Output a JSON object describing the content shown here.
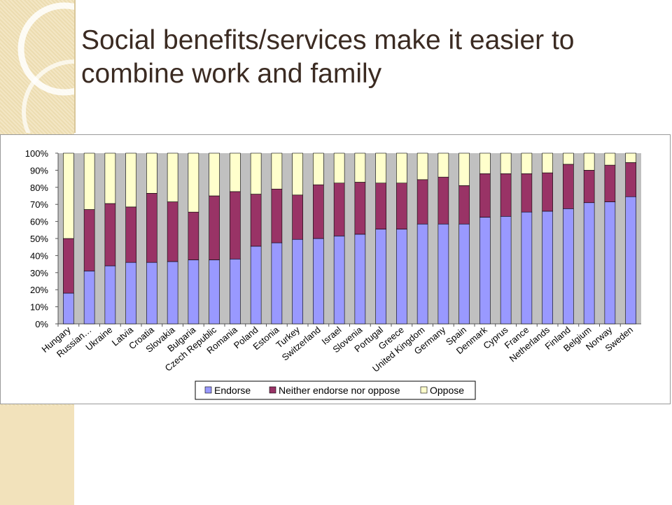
{
  "slide": {
    "title_line1": "Social benefits/services make it easier to",
    "title_line2": "combine work and family"
  },
  "colors": {
    "endorse": "#9999ff",
    "neither": "#993366",
    "oppose": "#ffffcc",
    "plot_bg": "#c0c0c0"
  },
  "chart_data": {
    "type": "bar",
    "stacked": true,
    "percent": true,
    "categories": [
      "Hungary",
      "Russian…",
      "Ukraine",
      "Latvia",
      "Croatia",
      "Slovakia",
      "Bulgaria",
      "Czech Republic",
      "Romania",
      "Poland",
      "Estonia",
      "Turkey",
      "Switzerland",
      "Israel",
      "Slovenia",
      "Portugal",
      "Greece",
      "United Kingdom",
      "Germany",
      "Spain",
      "Denmark",
      "Cyprus",
      "France",
      "Netherlands",
      "Finland",
      "Belgium",
      "Norway",
      "Sweden"
    ],
    "series": [
      {
        "name": "Endorse",
        "values": [
          18,
          31,
          34,
          36,
          36,
          36.5,
          37.5,
          37.5,
          38,
          45.5,
          47.5,
          49.5,
          50,
          51.5,
          52.5,
          55.5,
          55.5,
          58.5,
          58.5,
          58.5,
          62.5,
          63,
          65.5,
          66,
          67.5,
          71,
          71.5,
          74.5
        ]
      },
      {
        "name": "Neither endorse nor oppose",
        "values": [
          32,
          36,
          36.5,
          32.5,
          40.5,
          35,
          28,
          37.5,
          39.5,
          30.5,
          31.5,
          26,
          31.5,
          31,
          30.5,
          27,
          27,
          26,
          27.5,
          22.5,
          25.5,
          25,
          22.5,
          22.5,
          26,
          19,
          21.5,
          20
        ]
      },
      {
        "name": "Oppose",
        "values": [
          50,
          33,
          29.5,
          31.5,
          23.5,
          28.5,
          34.5,
          25,
          22.5,
          24,
          21,
          24.5,
          18.5,
          17.5,
          17,
          17.5,
          17.5,
          15.5,
          14,
          19,
          12,
          12,
          12,
          11.5,
          6.5,
          10,
          7,
          5.5
        ]
      }
    ],
    "ylim": [
      0,
      100
    ],
    "yticks": [
      "0%",
      "10%",
      "20%",
      "30%",
      "40%",
      "50%",
      "60%",
      "70%",
      "80%",
      "90%",
      "100%"
    ],
    "grid": false,
    "legend_position": "bottom"
  }
}
